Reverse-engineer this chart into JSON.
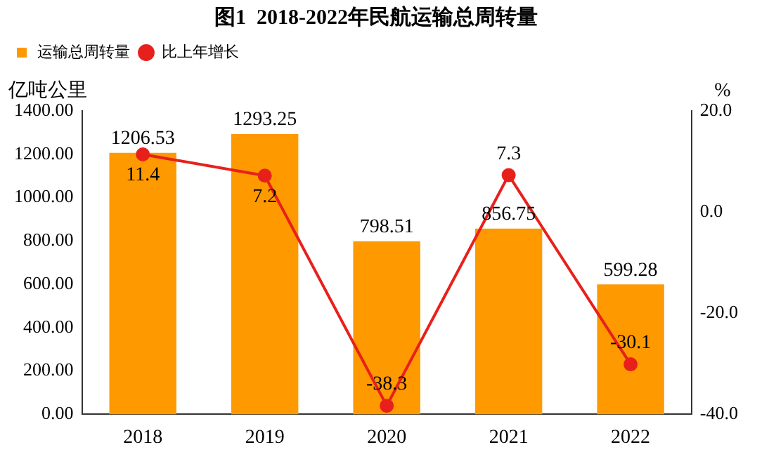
{
  "chart_data": {
    "type": "bar",
    "title": "图1  2018-2022年民航运输总周转量",
    "ylabel": "亿吨公里",
    "y2label": "%",
    "categories": [
      "2018",
      "2019",
      "2020",
      "2021",
      "2022"
    ],
    "series": [
      {
        "name": "运输总周转量",
        "color": "#ff9900",
        "values": [
          1206.53,
          1293.25,
          798.51,
          856.75,
          599.28
        ]
      },
      {
        "name": "比上年增长",
        "type": "line",
        "axis": "y2",
        "color": "#e8201c",
        "values": [
          11.4,
          7.2,
          -38.3,
          7.3,
          -30.1
        ]
      }
    ],
    "ylim": [
      0,
      1400
    ],
    "yticks": [
      {
        "value": 0,
        "label": "0.00"
      },
      {
        "value": 200,
        "label": "200.00"
      },
      {
        "value": 400,
        "label": "400.00"
      },
      {
        "value": 600,
        "label": "600.00"
      },
      {
        "value": 800,
        "label": "800.00"
      },
      {
        "value": 1000,
        "label": "1000.00"
      },
      {
        "value": 1200,
        "label": "1200.00"
      },
      {
        "value": 1400,
        "label": "1400.00"
      }
    ],
    "y2lim": [
      -40,
      20
    ],
    "y2ticks": [
      {
        "value": -40,
        "label": "-40.0"
      },
      {
        "value": -20,
        "label": "-20.0"
      },
      {
        "value": 0,
        "label": "0.0"
      },
      {
        "value": 20,
        "label": "20.0"
      }
    ],
    "data_labels": true,
    "grid": false,
    "legend": "top left",
    "marker": "circle",
    "line_style": "solid"
  }
}
